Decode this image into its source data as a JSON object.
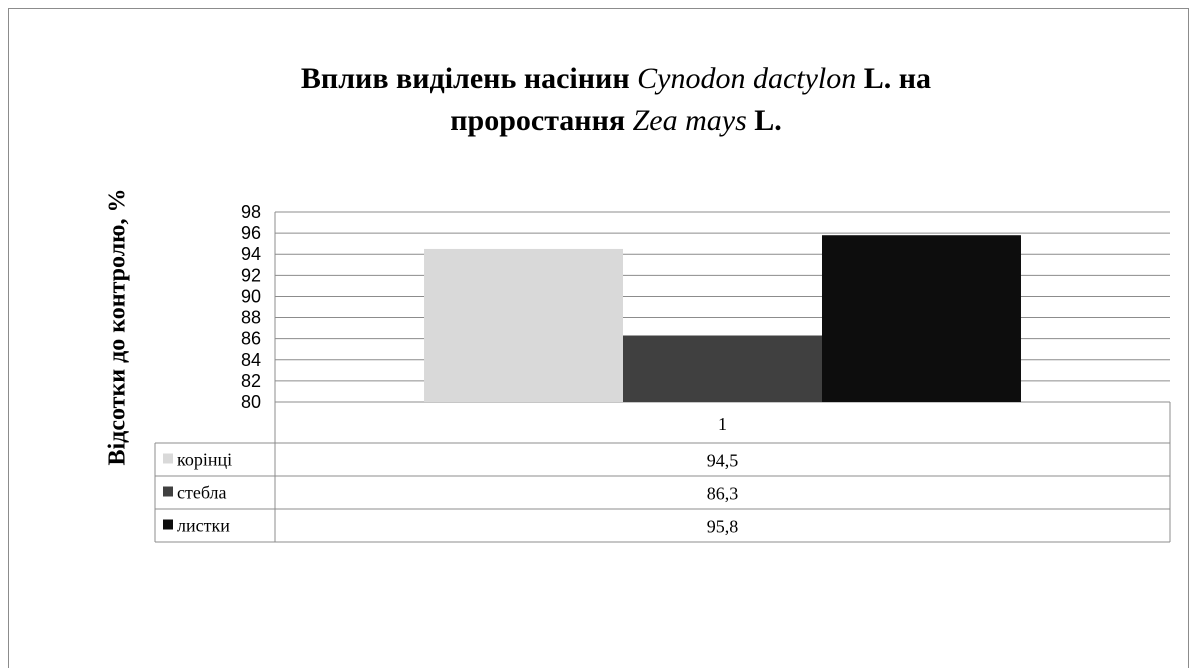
{
  "title": {
    "line1_a": "Вплив виділень насінин ",
    "line1_b": "Cynodon dactylon",
    "line1_c": " L. на",
    "line2_a": "проростання ",
    "line2_b": "Zea mays",
    "line2_c": " L."
  },
  "chart_data": {
    "type": "bar",
    "title": "Вплив виділень насінин Cynodon dactylon L. на проростання Zea mays L.",
    "ylabel": "Відсотки до контролю, %",
    "xlabel": "",
    "categories": [
      "1"
    ],
    "ylim": [
      80,
      98
    ],
    "yticks": [
      "80",
      "82",
      "84",
      "86",
      "88",
      "90",
      "92",
      "94",
      "96",
      "98"
    ],
    "grid": true,
    "legend": "data-table",
    "series": [
      {
        "name": "корінці",
        "values": [
          94.5
        ],
        "label": "94,5",
        "color": "#d9d9d9"
      },
      {
        "name": "стебла",
        "values": [
          86.3
        ],
        "label": "86,3",
        "color": "#404040"
      },
      {
        "name": "листки",
        "values": [
          95.8
        ],
        "label": "95,8",
        "color": "#0d0d0d"
      }
    ]
  }
}
